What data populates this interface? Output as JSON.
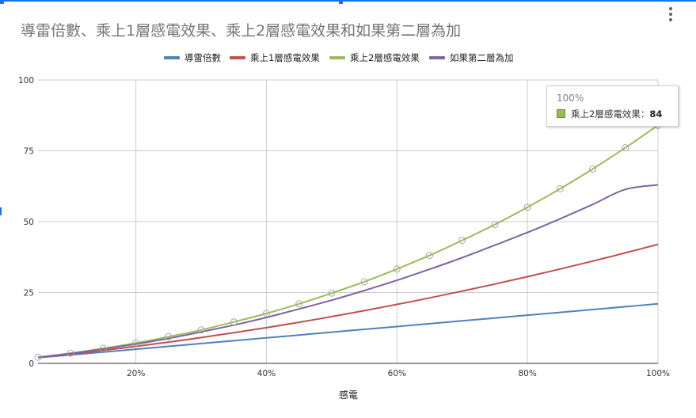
{
  "chart_data": {
    "type": "line",
    "title": "導雷倍數、乘上1層感電效果、乘上2層感電效果和如果第二層為加",
    "xlabel": "感電",
    "ylabel": "",
    "xlim": [
      5,
      100
    ],
    "ylim": [
      0,
      100
    ],
    "x_ticks": [
      "20%",
      "40%",
      "60%",
      "80%",
      "100%"
    ],
    "x_tick_values": [
      20,
      40,
      60,
      80,
      100
    ],
    "y_ticks": [
      "0",
      "25",
      "50",
      "75",
      "100"
    ],
    "y_tick_values": [
      0,
      25,
      50,
      75,
      100
    ],
    "grid": true,
    "legend_position": "top",
    "series": [
      {
        "name": "導雷倍數",
        "color": "#4f81bd",
        "x": [
          5,
          10,
          15,
          20,
          25,
          30,
          35,
          40,
          45,
          50,
          55,
          60,
          65,
          70,
          75,
          80,
          85,
          90,
          95,
          100
        ],
        "values": [
          2.0,
          3.0,
          4.0,
          5.0,
          6.0,
          7.0,
          8.0,
          9.0,
          10.0,
          11.0,
          12.0,
          13.0,
          14.0,
          15.0,
          16.0,
          17.0,
          18.0,
          19.0,
          20.0,
          21.0
        ]
      },
      {
        "name": "乘上1層感電效果",
        "color": "#c0504d",
        "x": [
          5,
          10,
          15,
          20,
          25,
          30,
          35,
          40,
          45,
          50,
          55,
          60,
          65,
          70,
          75,
          80,
          85,
          90,
          95,
          100
        ],
        "values": [
          2.1,
          3.3,
          4.6,
          6.0,
          7.5,
          9.1,
          10.8,
          12.6,
          14.5,
          16.5,
          18.6,
          20.8,
          23.1,
          25.5,
          28.0,
          30.6,
          33.3,
          36.1,
          39.0,
          42.0
        ]
      },
      {
        "name": "乘上2層感電效果",
        "color": "#9bbb59",
        "markers": true,
        "x": [
          5,
          10,
          15,
          20,
          25,
          30,
          35,
          40,
          45,
          50,
          55,
          60,
          65,
          70,
          75,
          80,
          85,
          90,
          95,
          100
        ],
        "values": [
          2.2,
          3.6,
          5.3,
          7.2,
          9.4,
          11.8,
          14.6,
          17.6,
          21.0,
          24.8,
          28.8,
          33.3,
          38.1,
          43.4,
          49.0,
          55.1,
          61.6,
          68.6,
          76.1,
          84.0
        ]
      },
      {
        "name": "如果第二層為加",
        "color": "#8064a2",
        "x": [
          5,
          10,
          15,
          20,
          25,
          30,
          35,
          40,
          45,
          50,
          55,
          60,
          65,
          70,
          75,
          80,
          85,
          90,
          95,
          100
        ],
        "values": [
          2.1,
          3.5,
          5.1,
          6.8,
          8.8,
          11.1,
          13.5,
          16.2,
          19.2,
          22.3,
          25.7,
          29.3,
          33.2,
          37.3,
          41.7,
          46.2,
          51.0,
          56.1,
          61.4,
          63.0
        ]
      }
    ],
    "tooltip": {
      "title": "100%",
      "series": "乘上2層感電效果",
      "separator": "：",
      "value": "84"
    }
  }
}
